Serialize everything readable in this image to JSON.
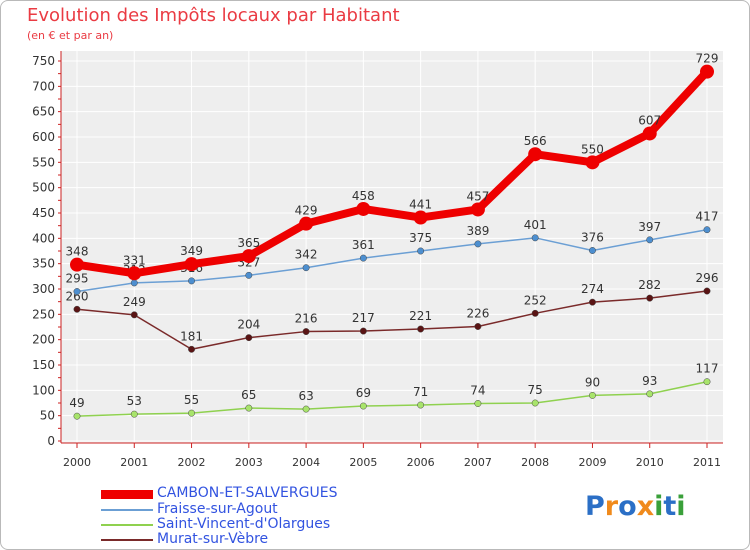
{
  "chart_data": {
    "type": "line",
    "title": "Evolution des Impôts locaux par Habitant",
    "subtitle": "(en € et par an)",
    "xlabel": "",
    "ylabel": "",
    "x": [
      "2000",
      "2001",
      "2002",
      "2003",
      "2004",
      "2005",
      "2006",
      "2007",
      "2008",
      "2009",
      "2010",
      "2011"
    ],
    "ylim": [
      0,
      750
    ],
    "yticks": [
      "0",
      "50",
      "100",
      "150",
      "200",
      "250",
      "300",
      "350",
      "400",
      "450",
      "500",
      "550",
      "600",
      "650",
      "700",
      "750"
    ],
    "grid": true,
    "legend_position": "bottom-left",
    "series": [
      {
        "name": "Saint-Vincent-d'Olargues",
        "color": "#8fd14f",
        "dot": "#a8e46b",
        "values": [
          49,
          53,
          55,
          65,
          63,
          69,
          71,
          74,
          75,
          90,
          93,
          117
        ],
        "labels": [
          "49",
          "53",
          "55",
          "65",
          "63",
          "69",
          "71",
          "74",
          "75",
          "90",
          "93",
          "117"
        ]
      },
      {
        "name": "Murat-sur-Vèbre",
        "color": "#7a2a2a",
        "dot": "#5a1414",
        "values": [
          260,
          249,
          181,
          204,
          216,
          217,
          221,
          226,
          252,
          274,
          282,
          296
        ],
        "labels": [
          "260",
          "249",
          "181",
          "204",
          "216",
          "217",
          "221",
          "226",
          "252",
          "274",
          "282",
          "296"
        ]
      },
      {
        "name": "Fraisse-sur-Agout",
        "color": "#6b9fd4",
        "dot": "#4d8fd0",
        "values": [
          295,
          312,
          316,
          327,
          342,
          361,
          375,
          389,
          401,
          376,
          397,
          417
        ],
        "labels": [
          "295",
          "312",
          "316",
          "327",
          "342",
          "361",
          "375",
          "389",
          "401",
          "376",
          "397",
          "417"
        ]
      },
      {
        "name": "CAMBON-ET-SALVERGUES",
        "color": "#ee0000",
        "dot": "#ee0000",
        "values": [
          348,
          331,
          349,
          365,
          429,
          458,
          441,
          457,
          566,
          550,
          607,
          729
        ],
        "labels": [
          "348",
          "331",
          "349",
          "365",
          "429",
          "458",
          "441",
          "457",
          "566",
          "550",
          "607",
          "729"
        ]
      }
    ]
  },
  "legend": [
    {
      "label": "CAMBON-ET-SALVERGUES",
      "color": "#ee0000"
    },
    {
      "label": "Fraisse-sur-Agout",
      "color": "#6b9fd4"
    },
    {
      "label": "Saint-Vincent-d'Olargues",
      "color": "#8fd14f"
    },
    {
      "label": "Murat-sur-Vèbre",
      "color": "#7a2a2a"
    }
  ],
  "brand": {
    "text": "Proxiti",
    "colors": [
      "#2b6fc6",
      "#f08a1c",
      "#2b6fc6",
      "#f08a1c",
      "#3aa03a",
      "#2b6fc6",
      "#3aa03a"
    ]
  }
}
